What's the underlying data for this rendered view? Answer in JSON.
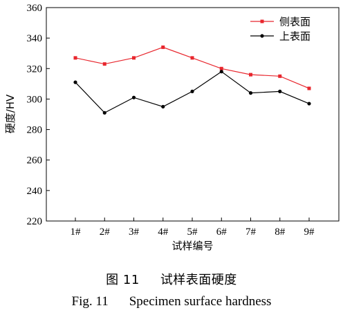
{
  "chart_data": {
    "type": "line",
    "title": "",
    "xlabel": "试样编号",
    "ylabel": "硬度/HV",
    "categories": [
      "1#",
      "2#",
      "3#",
      "4#",
      "5#",
      "6#",
      "7#",
      "8#",
      "9#"
    ],
    "ylim": [
      220,
      360
    ],
    "yticks": [
      220,
      240,
      260,
      280,
      300,
      320,
      340,
      360
    ],
    "grid": false,
    "legend_position": "top-right",
    "series": [
      {
        "name": "侧表面",
        "color": "#e8262d",
        "marker": "square",
        "values": [
          327,
          323,
          327,
          334,
          327,
          320,
          316,
          315,
          307
        ]
      },
      {
        "name": "上表面",
        "color": "#000000",
        "marker": "circle",
        "values": [
          311,
          291,
          301,
          295,
          305,
          318,
          304,
          305,
          297
        ]
      }
    ]
  },
  "caption": {
    "cn_number": "图 11",
    "cn_text": "试样表面硬度",
    "en_number": "Fig. 11",
    "en_text": "Specimen surface hardness"
  }
}
